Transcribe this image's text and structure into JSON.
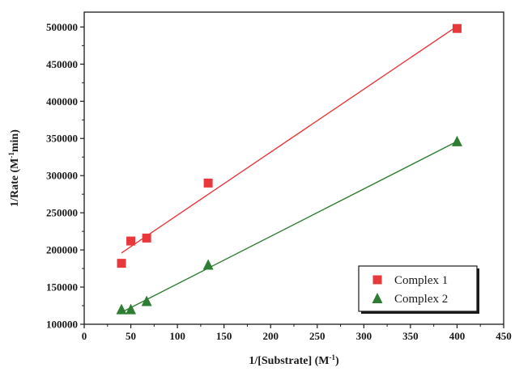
{
  "chart_data": {
    "type": "scatter",
    "xlabel": "1/[Substrate] (M",
    "xlabel_sup": "-1",
    "xlabel_end": ")",
    "ylabel": "1/Rate (M",
    "ylabel_sup": "-1",
    "ylabel_end": "min)",
    "xlim": [
      0,
      450
    ],
    "ylim": [
      100000,
      520000
    ],
    "x_ticks": [
      0,
      50,
      100,
      150,
      200,
      250,
      300,
      350,
      400,
      450
    ],
    "y_ticks": [
      100000,
      150000,
      200000,
      250000,
      300000,
      350000,
      400000,
      450000,
      500000
    ],
    "grid": false,
    "legend_position": "bottom-right",
    "series": [
      {
        "name": "Complex 1",
        "marker": "square",
        "color": "#e8383c",
        "x": [
          40,
          50,
          67,
          133,
          400
        ],
        "y": [
          182000,
          212000,
          216000,
          290000,
          498000
        ],
        "fit_line": {
          "x": [
            40,
            400
          ],
          "y": [
            196000,
            501000
          ]
        }
      },
      {
        "name": "Complex 2",
        "marker": "triangle",
        "color": "#2e7d32",
        "x": [
          40,
          50,
          67,
          133,
          400
        ],
        "y": [
          120000,
          120000,
          131000,
          180000,
          346000
        ],
        "fit_line": {
          "x": [
            40,
            400
          ],
          "y": [
            116000,
            346000
          ]
        }
      }
    ]
  }
}
